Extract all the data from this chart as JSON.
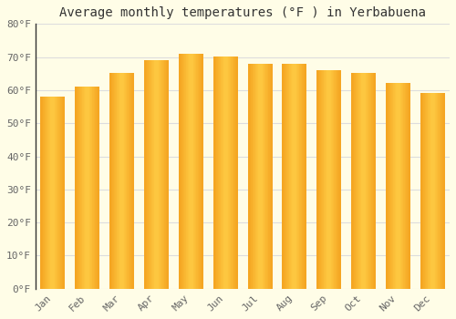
{
  "title": "Average monthly temperatures (°F ) in Yerbabuena",
  "months": [
    "Jan",
    "Feb",
    "Mar",
    "Apr",
    "May",
    "Jun",
    "Jul",
    "Aug",
    "Sep",
    "Oct",
    "Nov",
    "Dec"
  ],
  "values": [
    58,
    61,
    65,
    69,
    71,
    70,
    68,
    68,
    66,
    65,
    62,
    59
  ],
  "bar_color_left": "#F5A623",
  "bar_color_center": "#FFCC44",
  "bar_color_right": "#F5A623",
  "ylim": [
    0,
    80
  ],
  "yticks": [
    0,
    10,
    20,
    30,
    40,
    50,
    60,
    70,
    80
  ],
  "ytick_labels": [
    "0°F",
    "10°F",
    "20°F",
    "30°F",
    "40°F",
    "50°F",
    "60°F",
    "70°F",
    "80°F"
  ],
  "background_color": "#FFFDE7",
  "grid_color": "#DDDDDD",
  "title_fontsize": 10,
  "tick_fontsize": 8,
  "bar_width": 0.7,
  "left_spine_color": "#333333"
}
